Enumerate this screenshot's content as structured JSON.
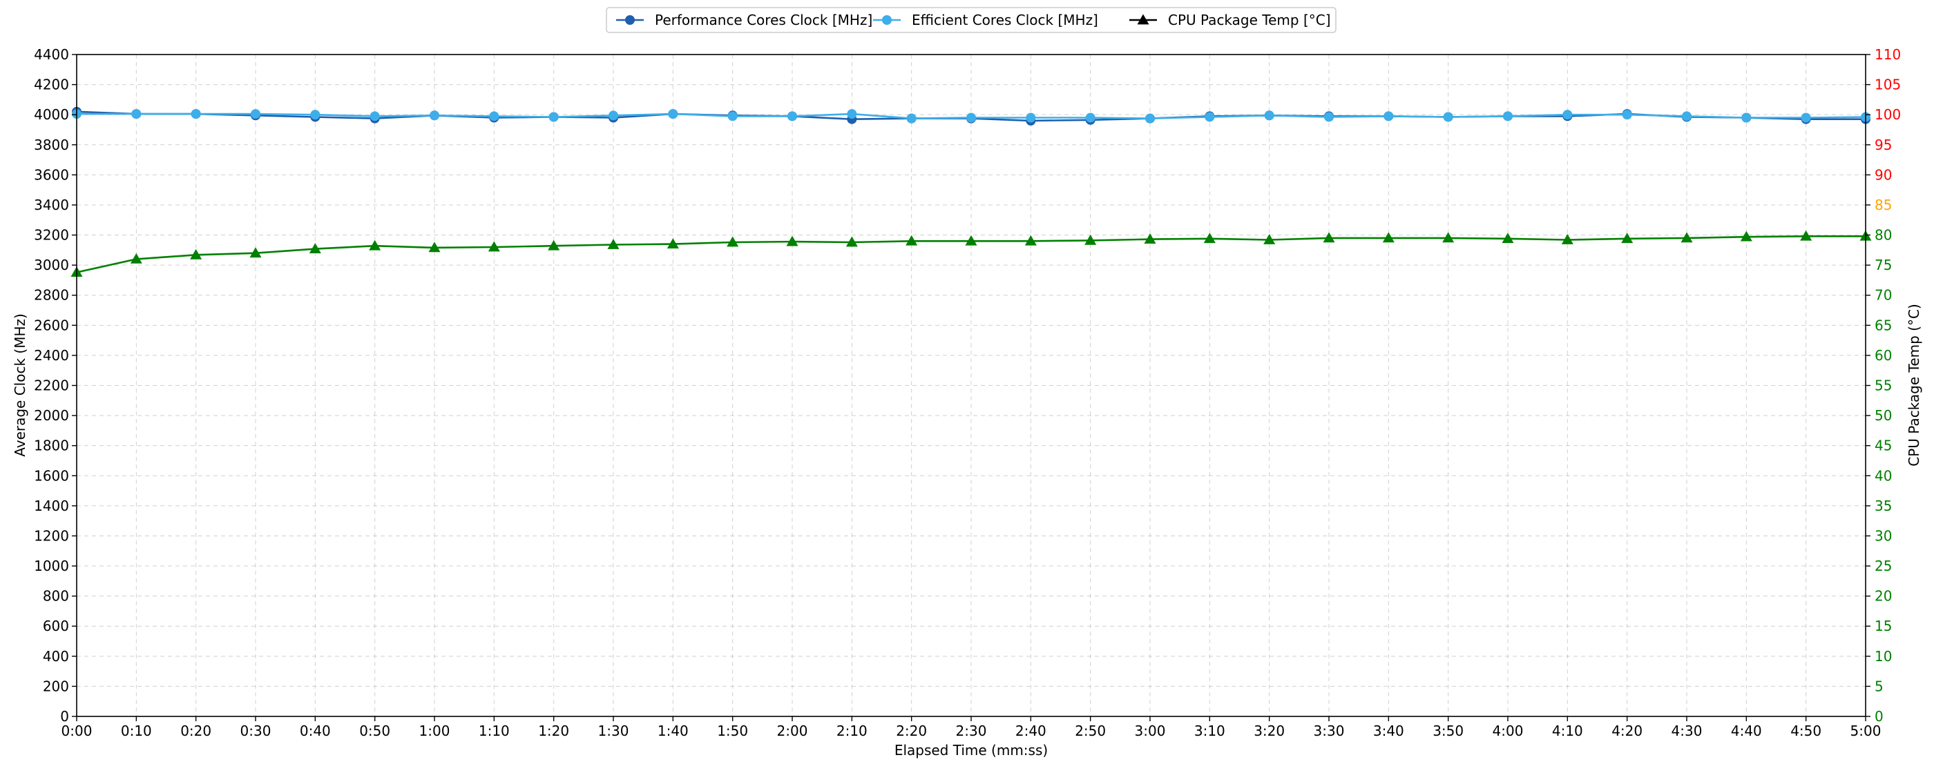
{
  "chart_data": {
    "type": "line",
    "title": "",
    "xlabel": "Elapsed Time (mm:ss)",
    "ylabel": "Average Clock (MHz)",
    "y2label": "CPU Package Temp (°C)",
    "ylim": [
      0,
      4400
    ],
    "y2lim": [
      0,
      110
    ],
    "grid": true,
    "legend_position": "top-center",
    "x": [
      "0:00",
      "0:10",
      "0:20",
      "0:30",
      "0:40",
      "0:50",
      "1:00",
      "1:10",
      "1:20",
      "1:30",
      "1:40",
      "1:50",
      "2:00",
      "2:10",
      "2:20",
      "2:30",
      "2:40",
      "2:50",
      "3:00",
      "3:10",
      "3:20",
      "3:30",
      "3:40",
      "3:50",
      "4:00",
      "4:10",
      "4:20",
      "4:30",
      "4:40",
      "4:50",
      "5:00"
    ],
    "y_ticks": [
      "0",
      "200",
      "400",
      "600",
      "800",
      "1000",
      "1200",
      "1400",
      "1600",
      "1800",
      "2000",
      "2200",
      "2400",
      "2600",
      "2800",
      "3000",
      "3200",
      "3400",
      "3600",
      "3800",
      "4000",
      "4200",
      "4400"
    ],
    "y2_ticks": [
      "0",
      "5",
      "10",
      "15",
      "20",
      "25",
      "30",
      "35",
      "40",
      "45",
      "50",
      "55",
      "60",
      "65",
      "70",
      "75",
      "80",
      "85",
      "90",
      "95",
      "100",
      "105",
      "110"
    ],
    "y2_tick_color_rules": {
      "green_below": 85,
      "orange_at": 85,
      "red_above": 85,
      "green": "#008000",
      "orange": "#ffa500",
      "red": "#ff0000"
    },
    "series": [
      {
        "name": "Performance Cores Clock [MHz]",
        "axis": "left",
        "color": "#1f5fad",
        "marker": "circle",
        "values": [
          4020,
          4005,
          4005,
          3995,
          3985,
          3975,
          3995,
          3980,
          3985,
          3980,
          4005,
          3995,
          3990,
          3970,
          3975,
          3975,
          3960,
          3965,
          3975,
          3990,
          3995,
          3990,
          3990,
          3985,
          3990,
          3990,
          4005,
          3985,
          3980,
          3970,
          3970
        ]
      },
      {
        "name": "Efficient Cores Clock [MHz]",
        "axis": "left",
        "color": "#3daee9",
        "marker": "circle",
        "values": [
          4005,
          4005,
          4005,
          4005,
          4000,
          3990,
          3995,
          3990,
          3985,
          3995,
          4005,
          3990,
          3990,
          4005,
          3975,
          3980,
          3980,
          3980,
          3975,
          3985,
          3995,
          3985,
          3990,
          3985,
          3990,
          4000,
          4000,
          3990,
          3980,
          3980,
          3985
        ]
      },
      {
        "name": "CPU Package Temp [°C]",
        "axis": "right",
        "color": "#008000",
        "legend_color": "#000000",
        "marker": "triangle",
        "values": [
          73.8,
          76.0,
          76.7,
          77.0,
          77.7,
          78.2,
          77.9,
          78.0,
          78.2,
          78.4,
          78.5,
          78.8,
          78.9,
          78.8,
          79.0,
          79.0,
          79.0,
          79.1,
          79.3,
          79.4,
          79.2,
          79.5,
          79.5,
          79.5,
          79.4,
          79.2,
          79.4,
          79.5,
          79.7,
          79.8,
          79.8
        ]
      }
    ]
  }
}
